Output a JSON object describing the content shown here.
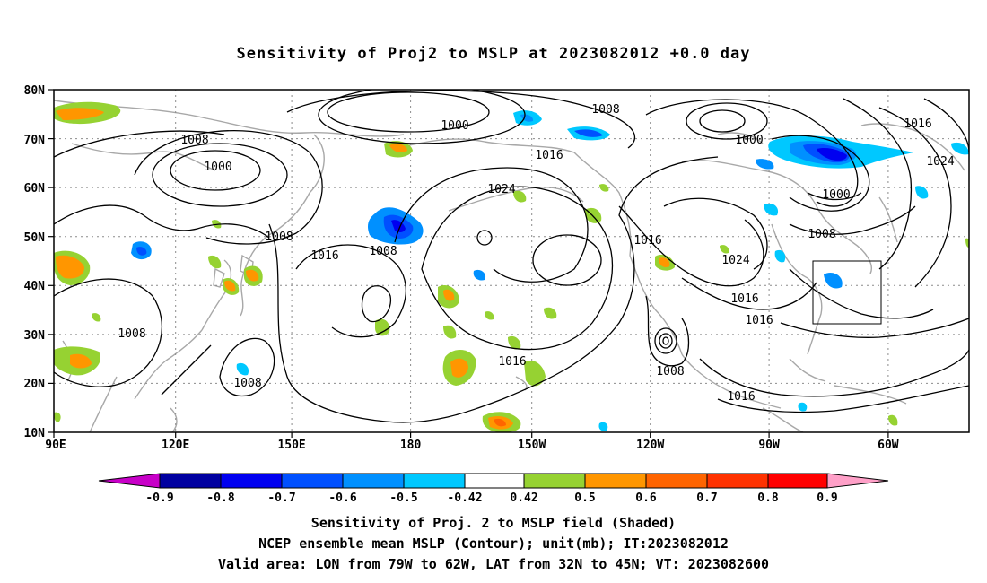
{
  "title": "Sensitivity of Proj2 to MSLP at 2023082012 +0.0 day",
  "lat_labels": [
    "80N",
    "70N",
    "60N",
    "50N",
    "40N",
    "30N",
    "20N",
    "10N"
  ],
  "lon_labels": [
    "90E",
    "120E",
    "150E",
    "180",
    "150W",
    "120W",
    "90W",
    "60W"
  ],
  "contour_labels": [
    "1000",
    "1008",
    "1008",
    "1000",
    "1016",
    "1024",
    "1008",
    "1008",
    "1016",
    "1008",
    "1008",
    "1016",
    "1016",
    "1024",
    "1008",
    "1016",
    "1016",
    "1008",
    "1016",
    "1000",
    "1000",
    "1016",
    "1024",
    "1008"
  ],
  "colorbar": {
    "labels": [
      "-0.9",
      "-0.8",
      "-0.7",
      "-0.6",
      "-0.5",
      "-0.42",
      "0.42",
      "0.5",
      "0.6",
      "0.7",
      "0.8",
      "0.9"
    ],
    "colors": [
      "#c800c8",
      "#0000a0",
      "#0000f0",
      "#0050ff",
      "#0090ff",
      "#00c8ff",
      "#ffffff",
      "#96d232",
      "#ff9600",
      "#ff6400",
      "#ff3200",
      "#ff0000",
      "#ffa0c8"
    ]
  },
  "valid_area": {
    "lon_from": "79W",
    "lon_to": "62W",
    "lat_from": "32N",
    "lat_to": "45N"
  },
  "footer": {
    "line1": "Sensitivity of Proj. 2 to MSLP field (Shaded)",
    "line2": "NCEP ensemble mean MSLP (Contour); unit(mb); IT:2023082012",
    "line3": "Valid area: LON from 79W to 62W, LAT from 32N to 45N; VT: 2023082600"
  }
}
